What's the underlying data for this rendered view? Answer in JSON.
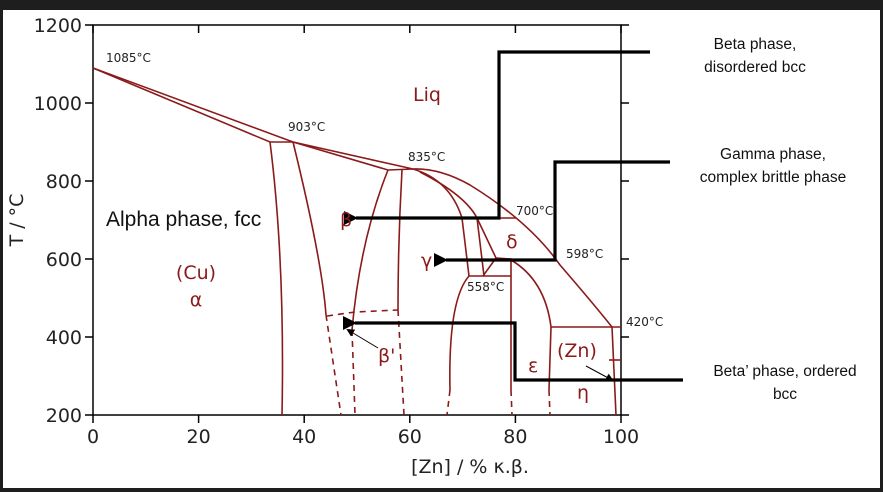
{
  "axes": {
    "xlabel": "[Zn] / % κ.β.",
    "ylabel": "T / °C",
    "xticks": [
      "0",
      "20",
      "40",
      "60",
      "80",
      "100"
    ],
    "yticks": [
      "200",
      "400",
      "600",
      "800",
      "1000",
      "1200"
    ],
    "xlim": [
      0,
      100
    ],
    "ylim": [
      200,
      1200
    ]
  },
  "temperatures": [
    "1085°C",
    "903°C",
    "835°C",
    "700°C",
    "598°C",
    "558°C",
    "420°C"
  ],
  "phases": {
    "liq": "Liq",
    "alpha_desc": "Alpha phase, fcc",
    "cu": "(Cu)",
    "alpha": "α",
    "beta": "β",
    "beta_prime": "β'",
    "gamma": "γ",
    "delta": "δ",
    "epsilon": "ε",
    "zn": "(Zn)",
    "eta": "η"
  },
  "annotations": {
    "beta_1": "Beta phase,",
    "beta_2": "disordered bcc",
    "gamma_1": "Gamma phase,",
    "gamma_2": "complex brittle phase",
    "betap_1": "Beta’ phase, ordered",
    "betap_2": "bcc"
  },
  "colors": {
    "phase_lines": "#8b1a1a",
    "arrows": "#000000",
    "background": "#1e1e1e"
  }
}
